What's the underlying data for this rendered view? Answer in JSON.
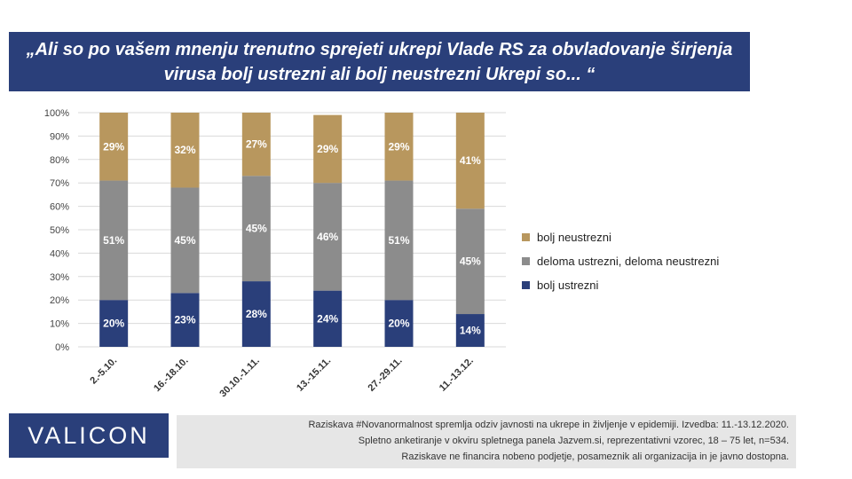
{
  "title": "„Ali so po vašem mnenju trenutno sprejeti ukrepi Vlade RS za obvladovanje širjenja virusa bolj ustrezni ali bolj neustrezni  Ukrepi so... “",
  "brand": "VALICON",
  "footnote": [
    "Raziskava #Novanormalnost spremlja odziv javnosti na ukrepe in življenje v epidemiji. Izvedba: 11.-13.12.2020.",
    "Spletno anketiranje v okviru spletnega panela Jazvem.si, reprezentativni vzorec, 18 – 75 let, n=534.",
    "Raziskave ne financira nobeno podjetje, posameznik ali organizacija in je javno dostopna."
  ],
  "colors": {
    "header": "#2a3f7a",
    "bolj_ustrezni": "#2a3f7a",
    "deloma": "#8c8c8c",
    "bolj_neustrezni": "#b8975e"
  },
  "legend": [
    {
      "label": "bolj neustrezni",
      "color": "#b8975e"
    },
    {
      "label": "deloma ustrezni, deloma neustrezni",
      "color": "#8c8c8c"
    },
    {
      "label": "bolj ustrezni",
      "color": "#2a3f7a"
    }
  ],
  "chart_data": {
    "type": "bar",
    "stacked": true,
    "categories": [
      "2.-5.10.",
      "16.-18.10.",
      "30.10.-1.11.",
      "13.-15.11.",
      "27.-29.11.",
      "11.-13.12."
    ],
    "series": [
      {
        "name": "bolj ustrezni",
        "values": [
          20,
          23,
          28,
          24,
          20,
          14
        ],
        "labels": [
          "20%",
          "23%",
          "28%",
          "24%",
          "20%",
          "14%"
        ]
      },
      {
        "name": "deloma ustrezni, deloma neustrezni",
        "values": [
          51,
          45,
          45,
          46,
          51,
          45
        ],
        "labels": [
          "51%",
          "45%",
          "45%",
          "46%",
          "51%",
          "45%"
        ]
      },
      {
        "name": "bolj neustrezni",
        "values": [
          29,
          32,
          27,
          29,
          29,
          41
        ],
        "labels": [
          "29%",
          "32%",
          "27%",
          "29%",
          "29%",
          "41%"
        ]
      }
    ],
    "ylim": [
      0,
      100
    ],
    "yticks": [
      "0%",
      "10%",
      "20%",
      "30%",
      "40%",
      "50%",
      "60%",
      "70%",
      "80%",
      "90%",
      "100%"
    ],
    "grid": true,
    "legend_position": "right"
  }
}
